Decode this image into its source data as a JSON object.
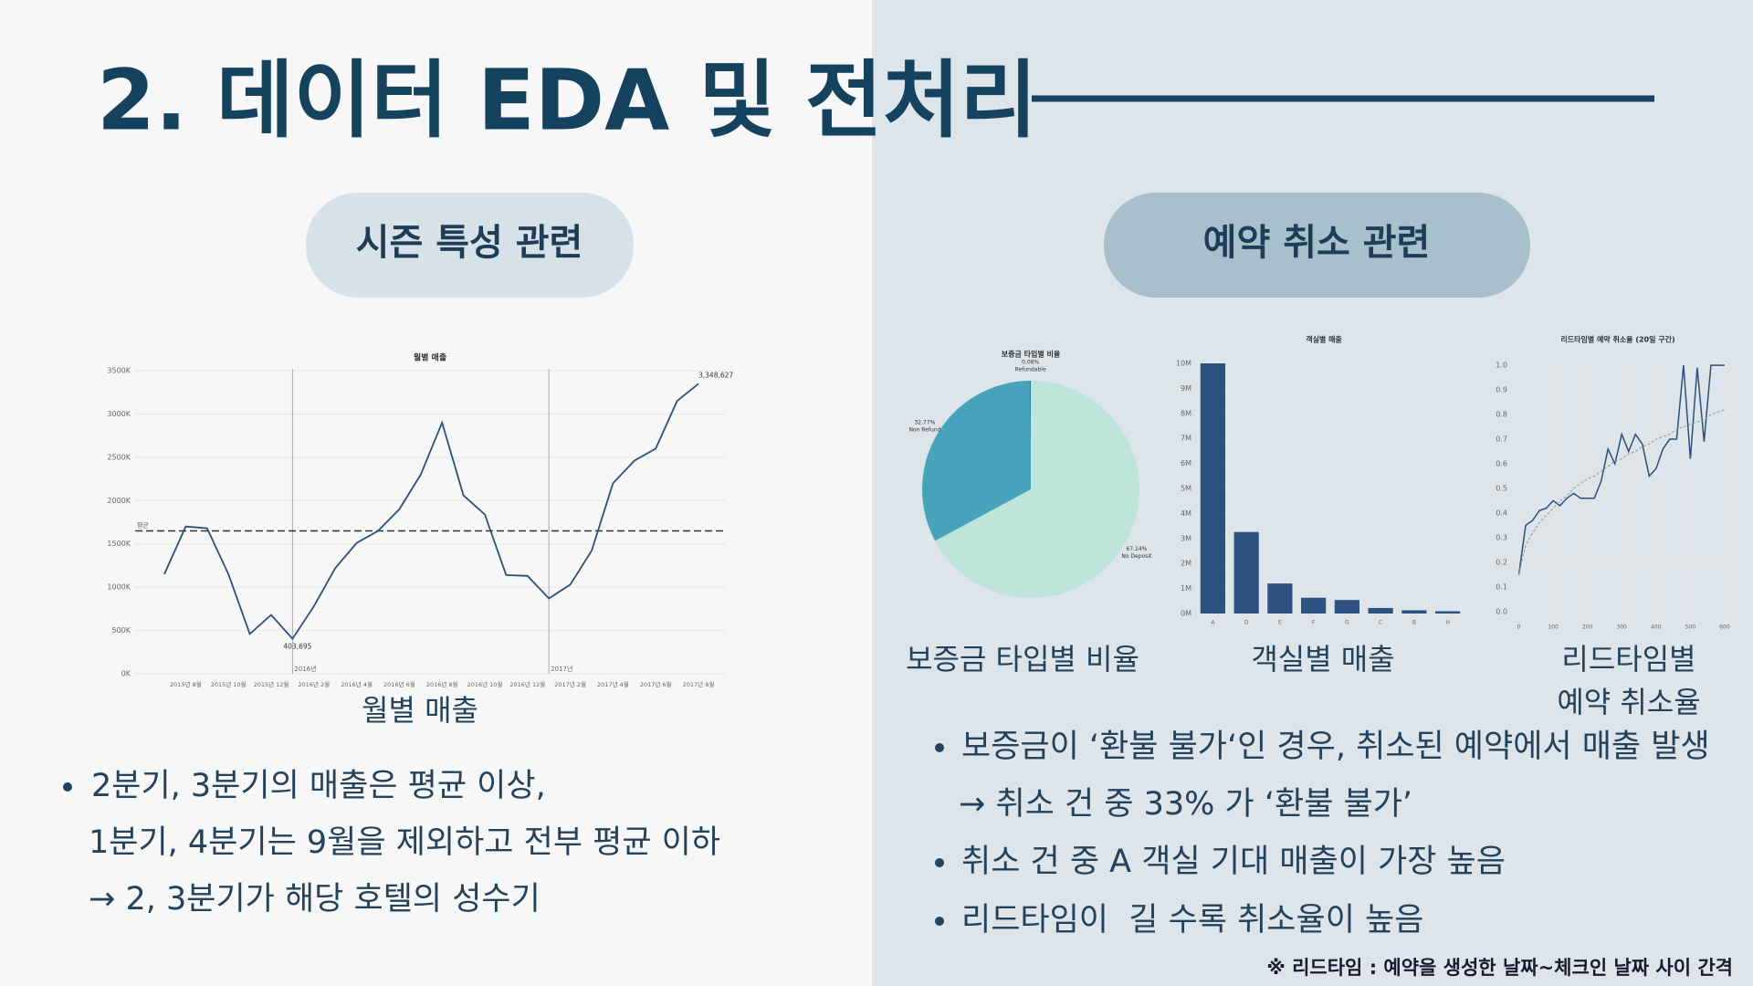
{
  "title": "2. 데이터 EDA 및 전처리",
  "sections": [
    {
      "label": "시즌 특성 관련"
    },
    {
      "label": "예약 취소 관련"
    }
  ],
  "left": {
    "caption": "월별 매출",
    "bullets": [
      {
        "lines": [
          "2분기, 3분기의 매출은 평균 이상,",
          "1분기, 4분기는 9월을 제외하고 전부 평균 이하",
          "→ 2, 3분기가 해당 호텔의 성수기"
        ]
      }
    ]
  },
  "right": {
    "captions": [
      {
        "lines": [
          "보증금 타입별 비율"
        ]
      },
      {
        "lines": [
          "객실별 매출"
        ]
      },
      {
        "lines": [
          "리드타임별",
          "예약 취소율"
        ]
      }
    ],
    "bullets": [
      {
        "lines": [
          "보증금이 ‘환불 불가‘인 경우, 취소된 예약에서 매출 발생",
          "→ 취소 건 중 33% 가 ‘환불 불가’"
        ]
      },
      {
        "lines": [
          "취소 건 중 A 객실 기대 매출이 가장 높음"
        ]
      },
      {
        "lines": [
          "리드타임이  길 수록 취소율이 높음"
        ]
      }
    ]
  },
  "footnote": "※ 리드타임 : 예약을 생성한 날짜~체크인 날짜 사이 간격",
  "chart_data": [
    {
      "type": "line",
      "title": "월별 매출",
      "color": "#2d4f7c",
      "grid": true,
      "categories": [
        null,
        "2015년 8월",
        null,
        "2015년 10월",
        null,
        "2015년 12월",
        null,
        "2016년 2월",
        null,
        "2016년 4월",
        null,
        "2016년 6월",
        null,
        "2016년 8월",
        null,
        "2016년 10월",
        null,
        "2016년 12월",
        null,
        "2017년 2월",
        null,
        "2017년 4월",
        null,
        "2017년 6월",
        null,
        "2017년 8월"
      ],
      "values": [
        1150,
        1700,
        1680,
        1150,
        460,
        680,
        403.695,
        780,
        1220,
        1510,
        1650,
        1900,
        2300,
        2900,
        2060,
        1840,
        1140,
        1130,
        870,
        1030,
        1420,
        2200,
        2460,
        2600,
        3150,
        3348.627
      ],
      "value_labels": [
        null,
        null,
        null,
        null,
        null,
        null,
        "403,695",
        null,
        null,
        null,
        null,
        null,
        null,
        null,
        null,
        null,
        null,
        null,
        null,
        null,
        null,
        null,
        null,
        null,
        null,
        "3,348,627"
      ],
      "mean": {
        "label": "평균",
        "value": 1650
      },
      "vlines": [
        {
          "index": 6,
          "label": "2016년"
        },
        {
          "index": 18,
          "label": "2017년"
        }
      ],
      "ylim": [
        0,
        3500
      ],
      "yticks": [
        {
          "value": 0,
          "label": "0K"
        },
        {
          "value": 500,
          "label": "500K"
        },
        {
          "value": 1000,
          "label": "1000K"
        },
        {
          "value": 1500,
          "label": "1500K"
        },
        {
          "value": 2000,
          "label": "2000K"
        },
        {
          "value": 2500,
          "label": "2500K"
        },
        {
          "value": 3000,
          "label": "3000K"
        },
        {
          "value": 3500,
          "label": "3500K"
        }
      ]
    },
    {
      "type": "pie",
      "title": "보증금 타입별 비율",
      "categories": [
        "No Deposit",
        "Non Refund",
        "Refundable"
      ],
      "values": [
        67.14,
        32.77,
        0.08
      ],
      "value_labels": [
        "67.14%",
        "32.77%",
        "0.08%"
      ],
      "colors": [
        "#bde5d9",
        "#46a3bb",
        "#2d5281"
      ]
    },
    {
      "type": "bar",
      "title": "객실별 매출",
      "color": "#2d5281",
      "grid": true,
      "categories": [
        "A",
        "D",
        "E",
        "F",
        "G",
        "C",
        "B",
        "H"
      ],
      "values": [
        10.0,
        3.26,
        1.2,
        0.63,
        0.54,
        0.22,
        0.13,
        0.09
      ],
      "ylim": [
        0,
        10
      ],
      "yticks": [
        {
          "value": 0,
          "label": "0M"
        },
        {
          "value": 1,
          "label": "1M"
        },
        {
          "value": 2,
          "label": "2M"
        },
        {
          "value": 3,
          "label": "3M"
        },
        {
          "value": 4,
          "label": "4M"
        },
        {
          "value": 5,
          "label": "5M"
        },
        {
          "value": 6,
          "label": "6M"
        },
        {
          "value": 7,
          "label": "7M"
        },
        {
          "value": 8,
          "label": "8M"
        },
        {
          "value": 9,
          "label": "9M"
        },
        {
          "value": 10,
          "label": "10M"
        }
      ]
    },
    {
      "type": "scatter-line",
      "title": "리드타임별 예약 취소율 (20일 구간)",
      "grid": true,
      "x": [
        0,
        20,
        40,
        60,
        80,
        100,
        120,
        140,
        160,
        180,
        200,
        220,
        240,
        260,
        280,
        300,
        320,
        340,
        360,
        380,
        400,
        420,
        440,
        460,
        480,
        500,
        520,
        540,
        560,
        580,
        600
      ],
      "series": [
        {
          "color": "#2d4f7c",
          "values": [
            0.15,
            0.35,
            0.37,
            0.41,
            0.42,
            0.45,
            0.43,
            0.46,
            0.48,
            0.46,
            0.46,
            0.46,
            0.53,
            0.66,
            0.6,
            0.72,
            0.65,
            0.72,
            0.68,
            0.55,
            0.58,
            0.66,
            0.7,
            0.7,
            1.0,
            0.62,
            0.99,
            0.69,
            1.0,
            1.0,
            1.0
          ]
        },
        {
          "color": "#999999",
          "dashed": true,
          "values": [
            0.15,
            0.27,
            0.32,
            0.36,
            0.39,
            0.42,
            0.45,
            0.47,
            0.5,
            0.52,
            0.54,
            0.55,
            0.57,
            0.59,
            0.61,
            0.62,
            0.64,
            0.65,
            0.67,
            0.68,
            0.7,
            0.71,
            0.72,
            0.74,
            0.75,
            0.76,
            0.77,
            0.78,
            0.8,
            0.81,
            0.82
          ]
        }
      ],
      "xlim": [
        -20,
        640
      ],
      "xticks": [
        0,
        100,
        200,
        300,
        400,
        500,
        600
      ],
      "ylim": [
        -0.03,
        1.03
      ],
      "yticks": [
        {
          "value": 0,
          "label": "0.0"
        },
        0.1,
        0.2,
        0.3,
        0.4,
        0.5,
        0.6,
        0.7,
        0.8,
        0.9,
        {
          "value": 1,
          "label": "1.0"
        }
      ]
    }
  ]
}
